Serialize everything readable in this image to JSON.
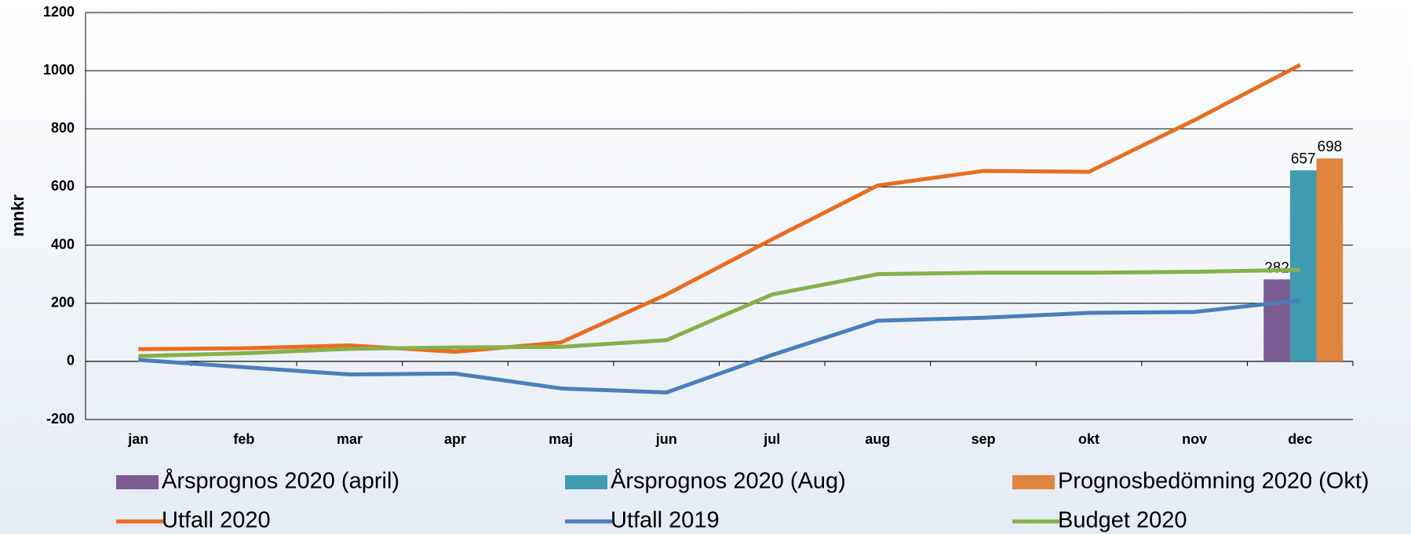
{
  "chart_data": {
    "type": "combo",
    "y_label": "mnkr",
    "categories": [
      "jan",
      "feb",
      "mar",
      "apr",
      "maj",
      "jun",
      "jul",
      "aug",
      "sep",
      "okt",
      "nov",
      "dec"
    ],
    "series": [
      {
        "name": "Årsprognos 2020 (april)",
        "type": "bar",
        "color": "#7b5c93",
        "values": [
          null,
          null,
          null,
          null,
          null,
          null,
          null,
          null,
          null,
          null,
          null,
          282
        ]
      },
      {
        "name": "Årsprognos 2020 (Aug)",
        "type": "bar",
        "color": "#3f9bb0",
        "values": [
          null,
          null,
          null,
          null,
          null,
          null,
          null,
          null,
          null,
          null,
          null,
          657
        ]
      },
      {
        "name": "Prognosbedömning 2020 (Okt)",
        "type": "bar",
        "color": "#e0843f",
        "values": [
          null,
          null,
          null,
          null,
          null,
          null,
          null,
          null,
          null,
          null,
          null,
          698
        ]
      },
      {
        "name": "Utfall 2020",
        "type": "line",
        "color": "#e86d1f",
        "values": [
          42,
          45,
          55,
          33,
          65,
          230,
          420,
          605,
          655,
          652,
          830,
          1020
        ]
      },
      {
        "name": "Utfall 2019",
        "type": "line",
        "color": "#4a7ebb",
        "values": [
          5,
          -20,
          -45,
          -42,
          -93,
          -107,
          22,
          140,
          150,
          167,
          170,
          210
        ]
      },
      {
        "name": "Budget 2020",
        "type": "line",
        "color": "#86b04a",
        "values": [
          18,
          28,
          43,
          48,
          50,
          73,
          230,
          300,
          305,
          305,
          308,
          315
        ]
      }
    ],
    "ylim": [
      -200,
      1200
    ],
    "yticks": [
      -200,
      0,
      200,
      400,
      600,
      800,
      1000,
      1200
    ],
    "grid": true
  }
}
